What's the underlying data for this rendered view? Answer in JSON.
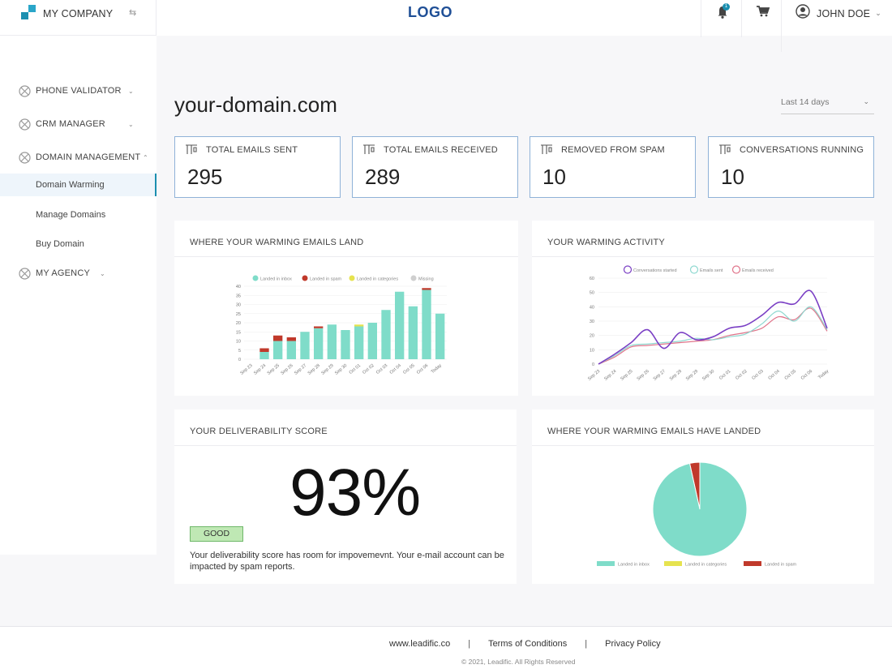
{
  "topbar": {
    "company": "MY COMPANY",
    "logo": "LOGO",
    "notifications_count": "1",
    "user_name": "JOHN DOE"
  },
  "sidebar": {
    "items": [
      {
        "label": "PHONE VALIDATOR",
        "icon": "circle-x-icon",
        "expanded": false
      },
      {
        "label": "CRM MANAGER",
        "icon": "circle-x-icon",
        "expanded": false
      },
      {
        "label": "DOMAIN MANAGEMENT",
        "icon": "circle-x-icon",
        "expanded": true,
        "children": [
          {
            "label": "Domain Warming",
            "active": true
          },
          {
            "label": "Manage Domains",
            "active": false
          },
          {
            "label": "Buy Domain",
            "active": false
          }
        ]
      },
      {
        "label": "MY AGENCY",
        "icon": "circle-x-icon",
        "expanded": false
      }
    ]
  },
  "main": {
    "domain": "your-domain.com",
    "range": "Last 14 days",
    "stats": [
      {
        "label": "TOTAL EMAILS SENT",
        "value": "295"
      },
      {
        "label": "TOTAL EMAILS RECEIVED",
        "value": "289"
      },
      {
        "label": "REMOVED FROM SPAM",
        "value": "10"
      },
      {
        "label": "CONVERSATIONS RUNNING",
        "value": "10"
      }
    ],
    "panels": {
      "land": "WHERE YOUR WARMING EMAILS LAND",
      "activity": "YOUR WARMING ACTIVITY",
      "score": "YOUR DELIVERABILITY SCORE",
      "landed": "WHERE YOUR WARMING EMAILS HAVE LANDED"
    },
    "score": {
      "value": "93%",
      "badge": "GOOD",
      "text": "Your deliverability score has room for impovemevnt. Your e-mail account can be impacted by spam reports."
    }
  },
  "colors": {
    "inbox": "#7fdcc9",
    "spam": "#c0392b",
    "category": "#e6e34f",
    "missing": "#cfcfcf",
    "started": "#7a3fc4",
    "sent": "#8fd9d0",
    "removed": "#e0748a",
    "accent": "#1b8fb0"
  },
  "chart_data": [
    {
      "type": "bar",
      "title": "",
      "categories": [
        "Sep 23",
        "Sep 24",
        "Sep 25",
        "Sep 26",
        "Sep 27",
        "Sep 28",
        "Sep 29",
        "Sep 30",
        "Oct 01",
        "Oct 02",
        "Oct 03",
        "Oct 04",
        "Oct 05",
        "Oct 06",
        "Today"
      ],
      "series": [
        {
          "name": "Landed in inbox",
          "values": [
            0,
            4,
            10,
            10,
            15,
            17,
            19,
            16,
            18,
            20,
            27,
            37,
            29,
            38,
            25
          ]
        },
        {
          "name": "Landed in spam",
          "values": [
            0,
            2,
            3,
            2,
            0,
            1,
            0,
            0,
            0,
            0,
            0,
            0,
            0,
            1,
            0
          ]
        },
        {
          "name": "Landed in categories",
          "values": [
            0,
            0,
            0,
            0,
            0,
            0,
            0,
            0,
            1,
            0,
            0,
            0,
            0,
            0,
            0
          ]
        },
        {
          "name": "Missing",
          "values": [
            0,
            0,
            0,
            0,
            0,
            0,
            0,
            0,
            0,
            0,
            0,
            0,
            0,
            0,
            0
          ]
        }
      ],
      "ylim": [
        0,
        40
      ],
      "yticks": [
        0,
        5,
        10,
        15,
        20,
        25,
        30,
        35,
        40
      ],
      "stacked": true,
      "legend": "top"
    },
    {
      "type": "line",
      "title": "",
      "categories": [
        "Sep 23",
        "Sep 24",
        "Sep 25",
        "Sep 26",
        "Sep 27",
        "Sep 28",
        "Sep 29",
        "Sep 30",
        "Oct 01",
        "Oct 02",
        "Oct 03",
        "Oct 04",
        "Oct 05",
        "Oct 06",
        "Today"
      ],
      "series": [
        {
          "name": "Conversations started",
          "values": [
            0,
            7,
            15,
            24,
            11,
            22,
            17,
            19,
            25,
            27,
            34,
            43,
            42,
            51,
            25
          ]
        },
        {
          "name": "Emails sent",
          "values": [
            0,
            6,
            13,
            14,
            15,
            16,
            18,
            17,
            19,
            21,
            28,
            37,
            30,
            40,
            24
          ]
        },
        {
          "name": "Emails received",
          "values": [
            0,
            5,
            12,
            13,
            14,
            15,
            16,
            17,
            20,
            22,
            25,
            33,
            31,
            39,
            23
          ]
        }
      ],
      "ylim": [
        0,
        60
      ],
      "yticks": [
        0,
        10,
        20,
        30,
        40,
        50,
        60
      ],
      "legend": "top"
    },
    {
      "type": "pie",
      "title": "",
      "labels": [
        "Landed in inbox",
        "Landed in categories",
        "Landed in spam"
      ],
      "values": [
        279,
        0,
        10
      ],
      "legend": "bottom"
    }
  ]
}
